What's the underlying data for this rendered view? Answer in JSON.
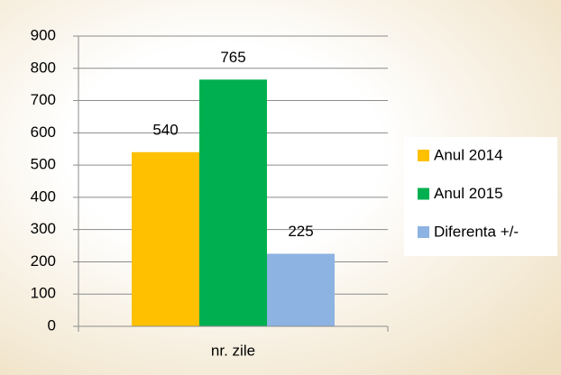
{
  "chart_data": {
    "type": "bar",
    "categories": [
      "nr. zile"
    ],
    "series": [
      {
        "name": "Anul 2014",
        "color": "#ffc000",
        "values": [
          540
        ]
      },
      {
        "name": "Anul 2015",
        "color": "#00b050",
        "values": [
          765
        ]
      },
      {
        "name": "Diferenta +/-",
        "color": "#8db3e2",
        "values": [
          225
        ]
      }
    ],
    "ylim": [
      0,
      900
    ],
    "yticks": [
      0,
      100,
      200,
      300,
      400,
      500,
      600,
      700,
      800,
      900
    ],
    "grid": true,
    "legend": "right",
    "data_labels": true
  }
}
